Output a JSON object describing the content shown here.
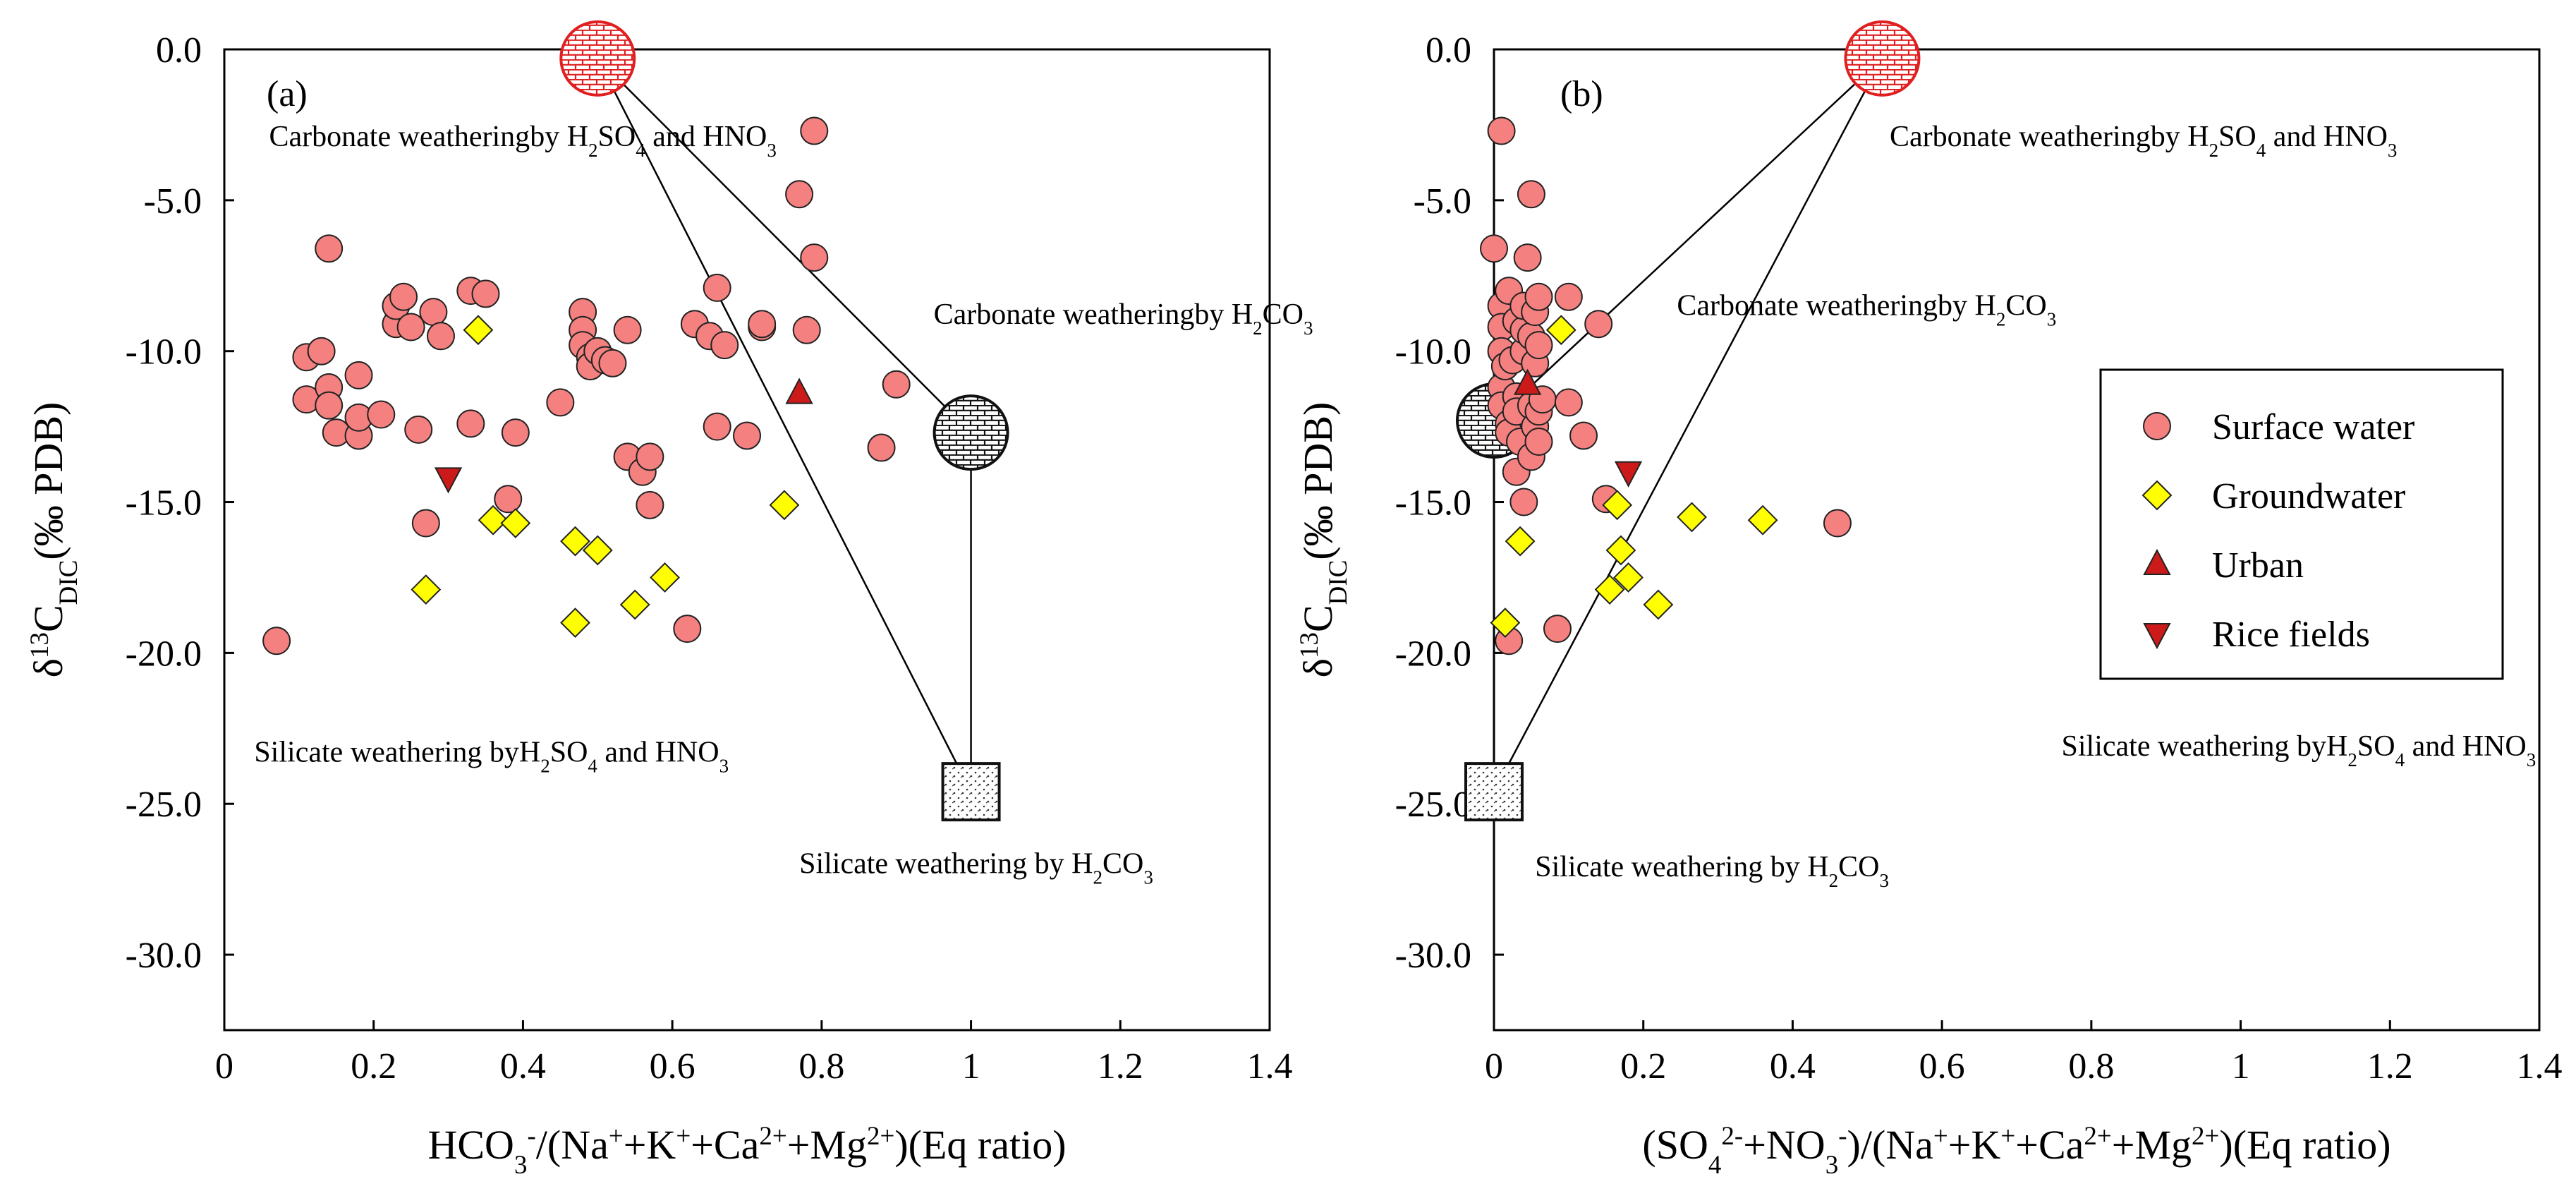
{
  "chart_data": [
    {
      "type": "scatter",
      "panel_label": "(a)",
      "xlabel": {
        "parts": [
          {
            "t": "HCO"
          },
          {
            "t": "3",
            "s": "sub"
          },
          {
            "t": "-",
            "s": "sup"
          },
          {
            "t": "/(Na"
          },
          {
            "t": "+",
            "s": "sup"
          },
          {
            "t": "+K"
          },
          {
            "t": "+",
            "s": "sup"
          },
          {
            "t": "+Ca"
          },
          {
            "t": "2+",
            "s": "sup"
          },
          {
            "t": "+Mg"
          },
          {
            "t": "2+",
            "s": "sup"
          },
          {
            "t": ")(Eq ratio)"
          }
        ]
      },
      "ylabel": {
        "parts": [
          {
            "t": "δ"
          },
          {
            "t": "13",
            "s": "sup"
          },
          {
            "t": "C"
          },
          {
            "t": "DIC",
            "s": "sub"
          },
          {
            "t": "(‰ PDB)"
          }
        ]
      },
      "xlim": [
        0,
        1.4
      ],
      "ylim": [
        -32.5,
        0
      ],
      "x_ticks": [
        "0",
        "0.2",
        "0.4",
        "0.6",
        "0.8",
        "1",
        "1.2",
        "1.4"
      ],
      "x_tick_values": [
        0,
        0.2,
        0.4,
        0.6,
        0.8,
        1.0,
        1.2,
        1.4
      ],
      "y_ticks": [
        "0.0",
        "-5.0",
        "-10.0",
        "-15.0",
        "-20.0",
        "-25.0",
        "-30.0"
      ],
      "y_tick_values": [
        0,
        -5,
        -10,
        -15,
        -20,
        -25,
        -30
      ],
      "endmembers": [
        {
          "kind": "carbonate_sulfuric",
          "x": 0.5,
          "y": -0.3
        },
        {
          "kind": "carbonate_carbonic",
          "x": 1.0,
          "y": -12.7
        },
        {
          "kind": "silicate_carbonic",
          "x": 1.0,
          "y": -24.6
        }
      ],
      "mixing_lines": [
        {
          "from": [
            0.5,
            -0.3
          ],
          "to": [
            1.0,
            -12.7
          ]
        },
        {
          "from": [
            1.0,
            -12.7
          ],
          "to": [
            1.0,
            -24.6
          ]
        },
        {
          "from": [
            0.5,
            -0.3
          ],
          "to": [
            1.0,
            -24.6
          ]
        }
      ],
      "annotations": [
        {
          "lines": [
            [
              {
                "t": "Carbonate weathering"
              }
            ],
            [
              {
                "t": "by H"
              },
              {
                "t": "2",
                "s": "sub"
              },
              {
                "t": "SO"
              },
              {
                "t": "4",
                "s": "sub"
              },
              {
                "t": " and HNO"
              },
              {
                "t": "3",
                "s": "sub"
              }
            ]
          ],
          "at": [
            0.06,
            -3.2
          ]
        },
        {
          "lines": [
            [
              {
                "t": "Carbonate weathering"
              }
            ],
            [
              {
                "t": "by H"
              },
              {
                "t": "2",
                "s": "sub"
              },
              {
                "t": "CO"
              },
              {
                "t": "3",
                "s": "sub"
              }
            ]
          ],
          "at": [
            0.95,
            -9.1
          ]
        },
        {
          "lines": [
            [
              {
                "t": "Silicate weathering by"
              }
            ],
            [
              {
                "t": "H"
              },
              {
                "t": "2",
                "s": "sub"
              },
              {
                "t": "SO"
              },
              {
                "t": "4",
                "s": "sub"
              },
              {
                "t": " and HNO"
              },
              {
                "t": "3",
                "s": "sub"
              }
            ]
          ],
          "at": [
            0.04,
            -23.6
          ]
        },
        {
          "lines": [
            [
              {
                "t": "Silicate weathering"
              }
            ],
            [
              {
                "t": " by H"
              },
              {
                "t": "2",
                "s": "sub"
              },
              {
                "t": "CO"
              },
              {
                "t": "3",
                "s": "sub"
              }
            ]
          ],
          "at": [
            0.77,
            -27.3
          ]
        }
      ],
      "series": [
        {
          "name": "Surface water",
          "marker": "circle",
          "points": [
            [
              0.07,
              -19.6
            ],
            [
              0.11,
              -10.2
            ],
            [
              0.11,
              -11.6
            ],
            [
              0.13,
              -10.0
            ],
            [
              0.14,
              -6.6
            ],
            [
              0.14,
              -11.2
            ],
            [
              0.14,
              -11.8
            ],
            [
              0.15,
              -12.7
            ],
            [
              0.18,
              -12.8
            ],
            [
              0.18,
              -12.2
            ],
            [
              0.18,
              -10.8
            ],
            [
              0.21,
              -12.1
            ],
            [
              0.23,
              -9.1
            ],
            [
              0.23,
              -8.5
            ],
            [
              0.24,
              -8.2
            ],
            [
              0.25,
              -9.2
            ],
            [
              0.26,
              -12.6
            ],
            [
              0.27,
              -15.7
            ],
            [
              0.28,
              -8.7
            ],
            [
              0.29,
              -9.5
            ],
            [
              0.33,
              -12.4
            ],
            [
              0.33,
              -8.0
            ],
            [
              0.35,
              -8.1
            ],
            [
              0.38,
              -14.9
            ],
            [
              0.39,
              -12.7
            ],
            [
              0.45,
              -11.7
            ],
            [
              0.48,
              -8.7
            ],
            [
              0.48,
              -9.3
            ],
            [
              0.48,
              -9.8
            ],
            [
              0.49,
              -10.2
            ],
            [
              0.49,
              -10.5
            ],
            [
              0.5,
              -10.0
            ],
            [
              0.51,
              -10.3
            ],
            [
              0.52,
              -10.4
            ],
            [
              0.54,
              -9.3
            ],
            [
              0.54,
              -13.5
            ],
            [
              0.56,
              -14.0
            ],
            [
              0.57,
              -13.5
            ],
            [
              0.57,
              -15.1
            ],
            [
              0.62,
              -19.2
            ],
            [
              0.63,
              -9.1
            ],
            [
              0.65,
              -9.5
            ],
            [
              0.66,
              -7.9
            ],
            [
              0.66,
              -12.5
            ],
            [
              0.67,
              -9.8
            ],
            [
              0.7,
              -12.8
            ],
            [
              0.72,
              -9.2
            ],
            [
              0.72,
              -9.1
            ],
            [
              0.77,
              -4.8
            ],
            [
              0.78,
              -9.3
            ],
            [
              0.79,
              -2.7
            ],
            [
              0.79,
              -6.9
            ],
            [
              0.88,
              -13.2
            ],
            [
              0.9,
              -11.1
            ]
          ]
        },
        {
          "name": "Groundwater",
          "marker": "diamond",
          "points": [
            [
              0.27,
              -17.9
            ],
            [
              0.34,
              -9.3
            ],
            [
              0.36,
              -15.6
            ],
            [
              0.39,
              -15.7
            ],
            [
              0.47,
              -16.3
            ],
            [
              0.47,
              -19.0
            ],
            [
              0.5,
              -16.6
            ],
            [
              0.55,
              -18.4
            ],
            [
              0.59,
              -17.5
            ],
            [
              0.75,
              -15.1
            ]
          ]
        },
        {
          "name": "Urban",
          "marker": "triangle-up",
          "points": [
            [
              0.77,
              -11.4
            ]
          ]
        },
        {
          "name": "Rice fields",
          "marker": "triangle-down",
          "points": [
            [
              0.3,
              -14.2
            ]
          ]
        }
      ]
    },
    {
      "type": "scatter",
      "panel_label": "(b)",
      "xlabel": {
        "parts": [
          {
            "t": "(SO"
          },
          {
            "t": "4",
            "s": "sub"
          },
          {
            "t": "2-",
            "s": "sup"
          },
          {
            "t": "+NO"
          },
          {
            "t": "3",
            "s": "sub"
          },
          {
            "t": "-",
            "s": "sup"
          },
          {
            "t": ")/(Na"
          },
          {
            "t": "+",
            "s": "sup"
          },
          {
            "t": "+K"
          },
          {
            "t": "+",
            "s": "sup"
          },
          {
            "t": "+Ca"
          },
          {
            "t": "2+",
            "s": "sup"
          },
          {
            "t": "+Mg"
          },
          {
            "t": "2+",
            "s": "sup"
          },
          {
            "t": ")(Eq ratio)"
          }
        ]
      },
      "ylabel": {
        "parts": [
          {
            "t": "δ"
          },
          {
            "t": "13",
            "s": "sup"
          },
          {
            "t": "C"
          },
          {
            "t": "DIC",
            "s": "sub"
          },
          {
            "t": "(‰ PDB)"
          }
        ]
      },
      "xlim": [
        0,
        1.4
      ],
      "ylim": [
        -32.5,
        0
      ],
      "x_ticks": [
        "0",
        "0.2",
        "0.4",
        "0.6",
        "0.8",
        "1",
        "1.2",
        "1.4"
      ],
      "x_tick_values": [
        0,
        0.2,
        0.4,
        0.6,
        0.8,
        1.0,
        1.2,
        1.4
      ],
      "y_ticks": [
        "0.0",
        "-5.0",
        "-10.0",
        "-15.0",
        "-20.0",
        "-25.0",
        "-30.0"
      ],
      "y_tick_values": [
        0,
        -5,
        -10,
        -15,
        -20,
        -25,
        -30
      ],
      "endmembers": [
        {
          "kind": "carbonate_sulfuric",
          "x": 0.52,
          "y": -0.3
        },
        {
          "kind": "carbonate_carbonic",
          "x": 0.0,
          "y": -12.3
        },
        {
          "kind": "silicate_carbonic",
          "x": 0.0,
          "y": -24.6
        }
      ],
      "mixing_lines": [
        {
          "from": [
            0.52,
            -0.3
          ],
          "to": [
            0.0,
            -12.3
          ]
        },
        {
          "from": [
            0.52,
            -0.3
          ],
          "to": [
            0.0,
            -24.6
          ]
        }
      ],
      "annotations": [
        {
          "lines": [
            [
              {
                "t": "Carbonate weathering"
              }
            ],
            [
              {
                "t": "by H"
              },
              {
                "t": "2",
                "s": "sub"
              },
              {
                "t": "SO"
              },
              {
                "t": "4",
                "s": "sub"
              },
              {
                "t": " and HNO"
              },
              {
                "t": "3",
                "s": "sub"
              }
            ]
          ],
          "at": [
            0.53,
            -3.2
          ]
        },
        {
          "lines": [
            [
              {
                "t": "Carbonate weathering"
              }
            ],
            [
              {
                "t": "by H"
              },
              {
                "t": "2",
                "s": "sub"
              },
              {
                "t": "CO"
              },
              {
                "t": "3",
                "s": "sub"
              }
            ]
          ],
          "at": [
            0.245,
            -8.8
          ]
        },
        {
          "lines": [
            [
              {
                "t": "Silicate weathering by"
              }
            ],
            [
              {
                "t": "H"
              },
              {
                "t": "2",
                "s": "sub"
              },
              {
                "t": "SO"
              },
              {
                "t": "4",
                "s": "sub"
              },
              {
                "t": " and HNO"
              },
              {
                "t": "3",
                "s": "sub"
              }
            ]
          ],
          "at": [
            0.76,
            -23.4
          ]
        },
        {
          "lines": [
            [
              {
                "t": "Silicate weathering"
              }
            ],
            [
              {
                "t": " by H"
              },
              {
                "t": "2",
                "s": "sub"
              },
              {
                "t": "CO"
              },
              {
                "t": "3",
                "s": "sub"
              }
            ]
          ],
          "at": [
            0.055,
            -27.4
          ]
        }
      ],
      "legend": {
        "position": "right",
        "entries": [
          "Surface water",
          "Groundwater",
          "Urban",
          "Rice fields"
        ]
      },
      "series": [
        {
          "name": "Surface water",
          "marker": "circle",
          "points": [
            [
              0.0,
              -6.6
            ],
            [
              0.01,
              -2.7
            ],
            [
              0.01,
              -8.5
            ],
            [
              0.01,
              -9.2
            ],
            [
              0.01,
              -10.0
            ],
            [
              0.01,
              -11.2
            ],
            [
              0.01,
              -11.8
            ],
            [
              0.015,
              -10.5
            ],
            [
              0.02,
              -12.4
            ],
            [
              0.02,
              -12.7
            ],
            [
              0.02,
              -8.0
            ],
            [
              0.025,
              -10.3
            ],
            [
              0.03,
              -11.5
            ],
            [
              0.03,
              -9.0
            ],
            [
              0.03,
              -12.0
            ],
            [
              0.03,
              -14.0
            ],
            [
              0.035,
              -13.0
            ],
            [
              0.04,
              -15.0
            ],
            [
              0.04,
              -10.0
            ],
            [
              0.04,
              -9.3
            ],
            [
              0.04,
              -8.5
            ],
            [
              0.045,
              -6.9
            ],
            [
              0.05,
              -4.8
            ],
            [
              0.05,
              -11.8
            ],
            [
              0.05,
              -9.5
            ],
            [
              0.05,
              -13.5
            ],
            [
              0.055,
              -12.5
            ],
            [
              0.055,
              -8.7
            ],
            [
              0.055,
              -10.4
            ],
            [
              0.06,
              -9.8
            ],
            [
              0.06,
              -12.0
            ],
            [
              0.06,
              -13.0
            ],
            [
              0.06,
              -8.2
            ],
            [
              0.065,
              -11.6
            ],
            [
              0.1,
              -8.2
            ],
            [
              0.1,
              -11.7
            ],
            [
              0.12,
              -12.8
            ],
            [
              0.14,
              -9.1
            ],
            [
              0.15,
              -14.9
            ],
            [
              0.02,
              -19.6
            ],
            [
              0.085,
              -19.2
            ],
            [
              0.46,
              -15.7
            ]
          ]
        },
        {
          "name": "Groundwater",
          "marker": "diamond",
          "points": [
            [
              0.015,
              -19.0
            ],
            [
              0.035,
              -16.3
            ],
            [
              0.09,
              -9.3
            ],
            [
              0.155,
              -17.9
            ],
            [
              0.165,
              -15.1
            ],
            [
              0.17,
              -16.6
            ],
            [
              0.18,
              -17.5
            ],
            [
              0.22,
              -18.4
            ],
            [
              0.265,
              -15.5
            ],
            [
              0.36,
              -15.6
            ]
          ]
        },
        {
          "name": "Urban",
          "marker": "triangle-up",
          "points": [
            [
              0.045,
              -11.1
            ]
          ]
        },
        {
          "name": "Rice fields",
          "marker": "triangle-down",
          "points": [
            [
              0.18,
              -14.0
            ]
          ]
        }
      ]
    }
  ]
}
